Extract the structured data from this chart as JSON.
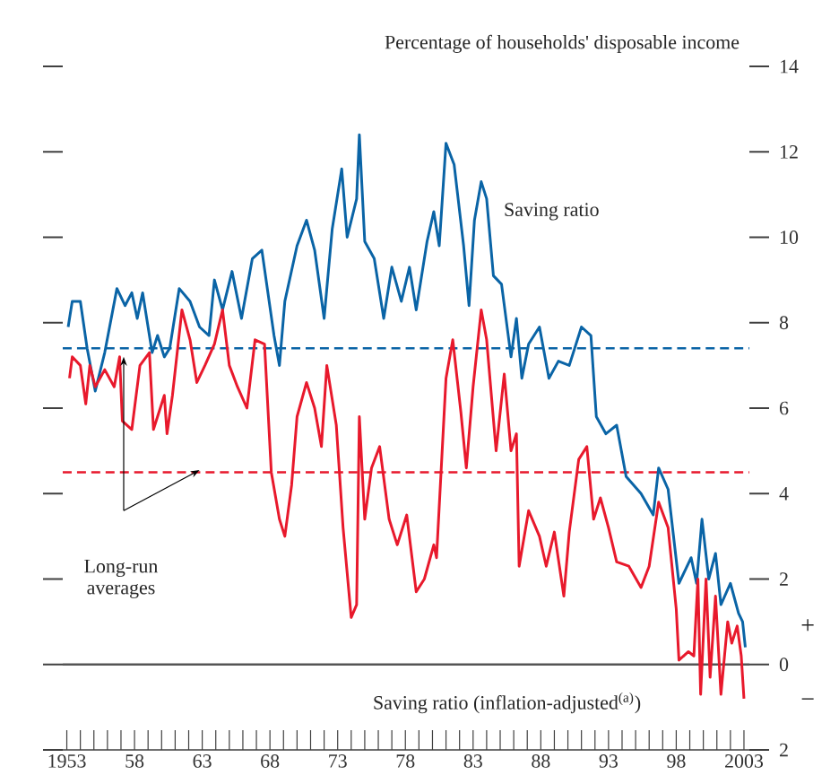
{
  "chart_data": {
    "type": "line",
    "ylabel": "Percentage of households' disposable income",
    "xlim": [
      1952.7,
      2003.4
    ],
    "ylim": [
      -2,
      14
    ],
    "xticks": [
      1953,
      {
        "value": 1954,
        "label": null
      },
      {
        "value": 1955,
        "label": null
      },
      {
        "value": 1956,
        "label": null
      },
      {
        "value": 1957,
        "label": null
      },
      {
        "value": 1958,
        "label": "58"
      },
      {
        "value": 1959,
        "label": null
      },
      {
        "value": 1960,
        "label": null
      },
      {
        "value": 1961,
        "label": null
      },
      {
        "value": 1962,
        "label": null
      },
      {
        "value": 1963,
        "label": "63"
      },
      {
        "value": 1964,
        "label": null
      },
      {
        "value": 1965,
        "label": null
      },
      {
        "value": 1966,
        "label": null
      },
      {
        "value": 1967,
        "label": null
      },
      {
        "value": 1968,
        "label": "68"
      },
      {
        "value": 1969,
        "label": null
      },
      {
        "value": 1970,
        "label": null
      },
      {
        "value": 1971,
        "label": null
      },
      {
        "value": 1972,
        "label": null
      },
      {
        "value": 1973,
        "label": "73"
      },
      {
        "value": 1974,
        "label": null
      },
      {
        "value": 1975,
        "label": null
      },
      {
        "value": 1976,
        "label": null
      },
      {
        "value": 1977,
        "label": null
      },
      {
        "value": 1978,
        "label": "78"
      },
      {
        "value": 1979,
        "label": null
      },
      {
        "value": 1980,
        "label": null
      },
      {
        "value": 1981,
        "label": null
      },
      {
        "value": 1982,
        "label": null
      },
      {
        "value": 1983,
        "label": "83"
      },
      {
        "value": 1984,
        "label": null
      },
      {
        "value": 1985,
        "label": null
      },
      {
        "value": 1986,
        "label": null
      },
      {
        "value": 1987,
        "label": null
      },
      {
        "value": 1988,
        "label": "88"
      },
      {
        "value": 1989,
        "label": null
      },
      {
        "value": 1990,
        "label": null
      },
      {
        "value": 1991,
        "label": null
      },
      {
        "value": 1992,
        "label": null
      },
      {
        "value": 1993,
        "label": "93"
      },
      {
        "value": 1994,
        "label": null
      },
      {
        "value": 1995,
        "label": null
      },
      {
        "value": 1996,
        "label": null
      },
      {
        "value": 1997,
        "label": null
      },
      {
        "value": 1998,
        "label": "98"
      },
      {
        "value": 1999,
        "label": null
      },
      {
        "value": 2000,
        "label": null
      },
      {
        "value": 2001,
        "label": null
      },
      {
        "value": 2002,
        "label": null
      },
      2003
    ],
    "yticks": [
      {
        "value": -2,
        "label": "2"
      },
      0,
      2,
      4,
      6,
      8,
      10,
      12,
      14
    ],
    "grid": false,
    "line_style": "solid",
    "series": [
      {
        "name": "Saving ratio",
        "color": "#0a64a6",
        "x": [
          1953.1,
          1953.4,
          1954.0,
          1954.5,
          1955.1,
          1955.8,
          1956.7,
          1957.3,
          1957.8,
          1958.2,
          1958.6,
          1959.3,
          1959.7,
          1960.2,
          1960.6,
          1961.3,
          1962.1,
          1962.8,
          1963.5,
          1963.9,
          1964.5,
          1965.2,
          1965.9,
          1966.7,
          1967.4,
          1968.3,
          1968.7,
          1969.1,
          1970.0,
          1970.7,
          1971.3,
          1972.0,
          1972.6,
          1973.3,
          1973.7,
          1974.4,
          1974.6,
          1975.0,
          1975.7,
          1976.4,
          1977.0,
          1977.7,
          1978.3,
          1978.8,
          1979.6,
          1980.1,
          1980.5,
          1981.0,
          1981.6,
          1982.3,
          1982.7,
          1983.1,
          1983.6,
          1984.0,
          1984.5,
          1985.1,
          1985.8,
          1986.2,
          1986.6,
          1987.1,
          1987.9,
          1988.6,
          1989.3,
          1990.1,
          1991.0,
          1991.7,
          1992.1,
          1992.8,
          1993.6,
          1994.3,
          1995.4,
          1996.3,
          1996.7,
          1997.4,
          1998.2,
          1999.1,
          1999.5,
          1999.9,
          2000.4,
          2000.9,
          2001.3,
          2002.0,
          2002.6,
          2002.9,
          2003.1
        ],
        "values": [
          7.9,
          8.5,
          8.5,
          7.4,
          6.4,
          7.3,
          8.8,
          8.4,
          8.7,
          8.1,
          8.7,
          7.3,
          7.7,
          7.2,
          7.4,
          8.8,
          8.5,
          7.9,
          7.7,
          9.0,
          8.3,
          9.2,
          8.1,
          9.5,
          9.7,
          7.7,
          7.0,
          8.5,
          9.8,
          10.4,
          9.7,
          8.1,
          10.2,
          11.6,
          10.0,
          10.9,
          12.4,
          9.9,
          9.5,
          8.1,
          9.3,
          8.5,
          9.3,
          8.3,
          9.9,
          10.6,
          9.8,
          12.2,
          11.7,
          9.8,
          8.4,
          10.4,
          11.3,
          10.9,
          9.1,
          8.9,
          7.2,
          8.1,
          6.7,
          7.5,
          7.9,
          6.7,
          7.1,
          7.0,
          7.9,
          7.7,
          5.8,
          5.4,
          5.6,
          4.4,
          4.0,
          3.5,
          4.6,
          4.1,
          1.9,
          2.5,
          1.9,
          3.4,
          2.0,
          2.6,
          1.4,
          1.9,
          1.2,
          1.0,
          0.4
        ]
      },
      {
        "name": "Saving ratio (inflation-adjusted$^{(a)}$)",
        "color": "#e8192c",
        "x": [
          1953.2,
          1953.4,
          1954.0,
          1954.4,
          1954.7,
          1955.1,
          1955.8,
          1956.5,
          1956.9,
          1957.1,
          1957.8,
          1958.4,
          1959.1,
          1959.4,
          1960.2,
          1960.4,
          1960.8,
          1961.5,
          1962.1,
          1962.6,
          1963.2,
          1963.9,
          1964.5,
          1965.0,
          1965.6,
          1966.3,
          1966.9,
          1967.6,
          1968.1,
          1968.7,
          1969.1,
          1969.6,
          1970.0,
          1970.7,
          1971.3,
          1971.8,
          1972.2,
          1972.9,
          1973.4,
          1974.0,
          1974.4,
          1974.6,
          1975.0,
          1975.5,
          1976.1,
          1976.8,
          1977.4,
          1978.1,
          1978.8,
          1979.4,
          1980.1,
          1980.3,
          1981.0,
          1981.5,
          1982.1,
          1982.5,
          1983.0,
          1983.6,
          1984.0,
          1984.7,
          1985.3,
          1985.8,
          1986.2,
          1986.4,
          1987.1,
          1987.9,
          1988.4,
          1989.0,
          1989.7,
          1990.1,
          1990.8,
          1991.4,
          1991.9,
          1992.4,
          1993.0,
          1993.6,
          1994.5,
          1995.4,
          1996.0,
          1996.7,
          1997.4,
          1998.0,
          1998.2,
          1998.9,
          1999.3,
          1999.6,
          1999.8,
          2000.2,
          2000.5,
          2000.9,
          2001.3,
          2001.8,
          2002.1,
          2002.5,
          2002.8,
          2003.0
        ],
        "values": [
          6.7,
          7.2,
          7.0,
          6.1,
          7.0,
          6.5,
          6.9,
          6.5,
          7.2,
          5.7,
          5.5,
          7.0,
          7.3,
          5.5,
          6.3,
          5.4,
          6.3,
          8.3,
          7.6,
          6.6,
          7.0,
          7.5,
          8.3,
          7.0,
          6.5,
          6.0,
          7.6,
          7.5,
          4.5,
          3.4,
          3.0,
          4.2,
          5.8,
          6.6,
          6.0,
          5.1,
          7.0,
          5.6,
          3.2,
          1.1,
          1.4,
          5.8,
          3.4,
          4.6,
          5.1,
          3.4,
          2.8,
          3.5,
          1.7,
          2.0,
          2.8,
          2.5,
          6.7,
          7.6,
          5.9,
          4.6,
          6.5,
          8.3,
          7.6,
          5.0,
          6.8,
          5.0,
          5.4,
          2.3,
          3.6,
          3.0,
          2.3,
          3.1,
          1.6,
          3.1,
          4.8,
          5.1,
          3.4,
          3.9,
          3.2,
          2.4,
          2.3,
          1.8,
          2.3,
          3.8,
          3.2,
          1.3,
          0.1,
          0.3,
          0.2,
          2.0,
          -0.7,
          2.0,
          -0.3,
          1.6,
          -0.7,
          1.0,
          0.5,
          0.9,
          0.2,
          -0.8
        ]
      }
    ],
    "ref_lines": [
      {
        "axis": "y",
        "value": 7.4,
        "color": "#0a64a6",
        "line_style": "dashed"
      },
      {
        "axis": "y",
        "value": 4.5,
        "color": "#e8192c",
        "line_style": "dashed"
      },
      {
        "axis": "y",
        "value": 0,
        "color": "#555555",
        "line_style": "solid"
      }
    ],
    "annotations": [
      "Long-run averages",
      "+",
      "−"
    ]
  }
}
